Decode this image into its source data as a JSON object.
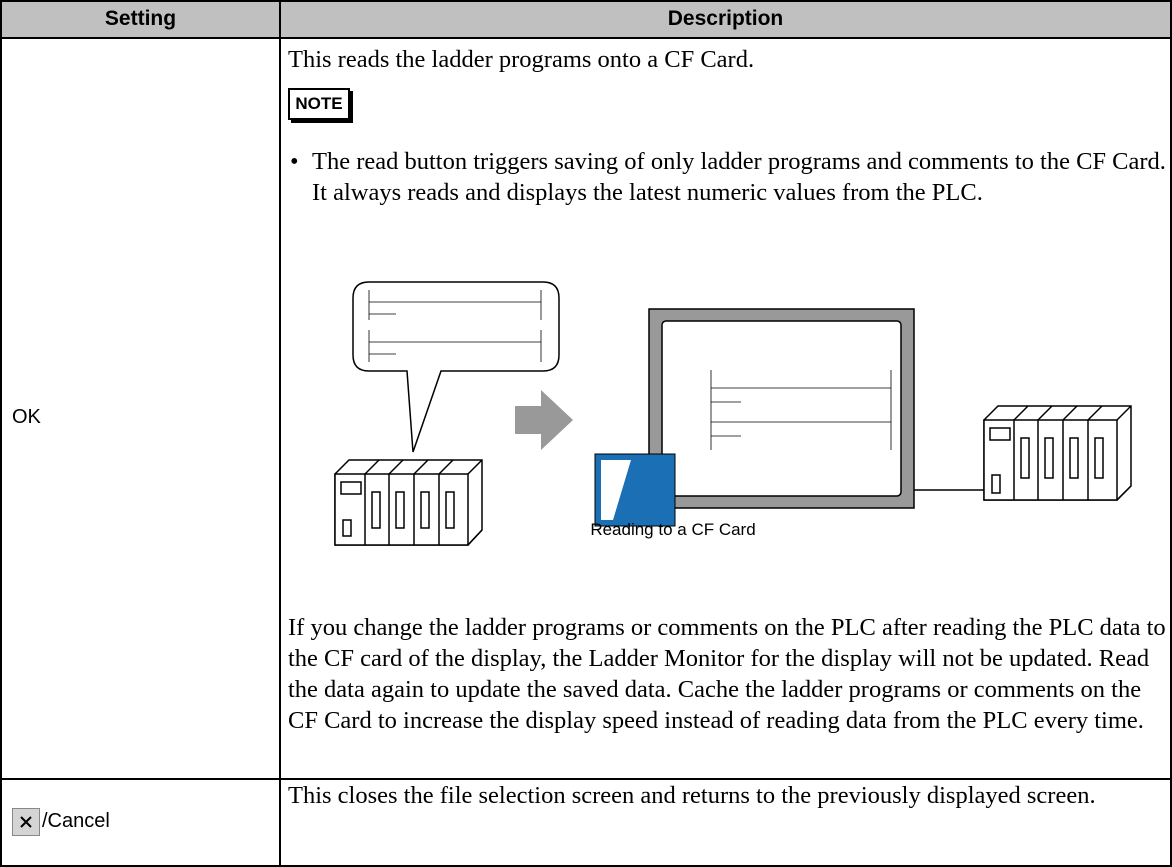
{
  "table": {
    "headers": [
      "Setting",
      "Description"
    ],
    "rows": [
      {
        "setting": "OK",
        "description": {
          "intro": "This reads the ladder programs onto a CF Card.",
          "note_label": "NOTE",
          "note": "The read button triggers saving of only ladder programs and comments to the CF Card. It always reads and displays the latest numeric values from the PLC.",
          "caption": "Reading to a CF Card",
          "text": "If you change the ladder programs or comments on the PLC after reading the PLC data to the CF card of the display, the Ladder Monitor for the display will not be updated. Read the data again to update the saved data. Cache the ladder programs or comments on the CF Card to increase the display speed instead of reading data from the PLC every time."
        }
      },
      {
        "setting": "/Cancel",
        "description": "This closes the file selection screen and returns to the previously displayed screen."
      }
    ]
  }
}
